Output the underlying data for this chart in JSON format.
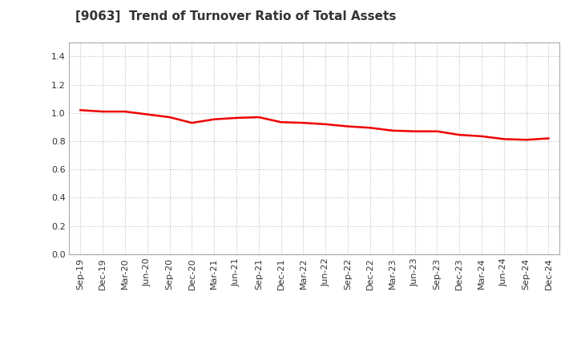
{
  "title": "[9063]  Trend of Turnover Ratio of Total Assets",
  "x_labels": [
    "Sep-19",
    "Dec-19",
    "Mar-20",
    "Jun-20",
    "Sep-20",
    "Dec-20",
    "Mar-21",
    "Jun-21",
    "Sep-21",
    "Dec-21",
    "Mar-22",
    "Jun-22",
    "Sep-22",
    "Dec-22",
    "Mar-23",
    "Jun-23",
    "Sep-23",
    "Dec-23",
    "Mar-24",
    "Jun-24",
    "Sep-24",
    "Dec-24"
  ],
  "y_values": [
    1.02,
    1.01,
    1.01,
    0.99,
    0.97,
    0.93,
    0.955,
    0.965,
    0.97,
    0.935,
    0.93,
    0.92,
    0.905,
    0.895,
    0.875,
    0.87,
    0.87,
    0.845,
    0.835,
    0.815,
    0.81,
    0.82
  ],
  "line_color": "#EE0000",
  "line_width": 1.8,
  "ylim": [
    0.0,
    1.5
  ],
  "yticks": [
    0.0,
    0.2,
    0.4,
    0.6,
    0.8,
    1.0,
    1.2,
    1.4
  ],
  "grid_color": "#bbbbbb",
  "background_color": "#ffffff",
  "title_fontsize": 11,
  "title_color": "#333333",
  "tick_fontsize": 8,
  "tick_color": "#333333"
}
